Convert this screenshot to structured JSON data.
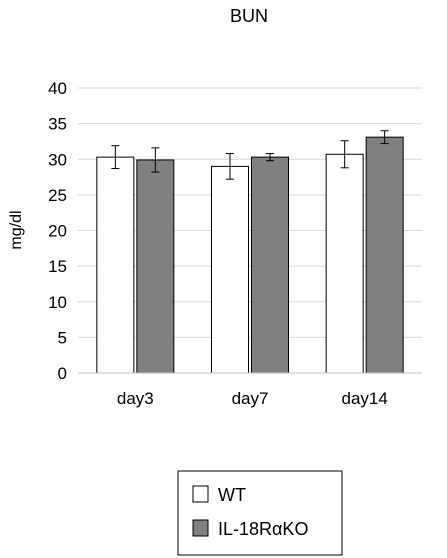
{
  "chart_data": {
    "type": "bar",
    "title": "BUN",
    "xlabel": "",
    "ylabel": "mg/dl",
    "ylim": [
      0,
      40
    ],
    "yticks": [
      0,
      5,
      10,
      15,
      20,
      25,
      30,
      35,
      40
    ],
    "grid": true,
    "legend_position": "bottom",
    "categories": [
      "day3",
      "day7",
      "day14"
    ],
    "series": [
      {
        "name": "WT",
        "color": "#ffffff",
        "values": [
          30.3,
          29.0,
          30.7
        ],
        "errors": [
          1.6,
          1.8,
          1.9
        ]
      },
      {
        "name": "IL-18RαKO",
        "color": "#808080",
        "values": [
          29.9,
          30.3,
          33.1
        ],
        "errors": [
          1.7,
          0.5,
          0.9
        ]
      }
    ]
  }
}
